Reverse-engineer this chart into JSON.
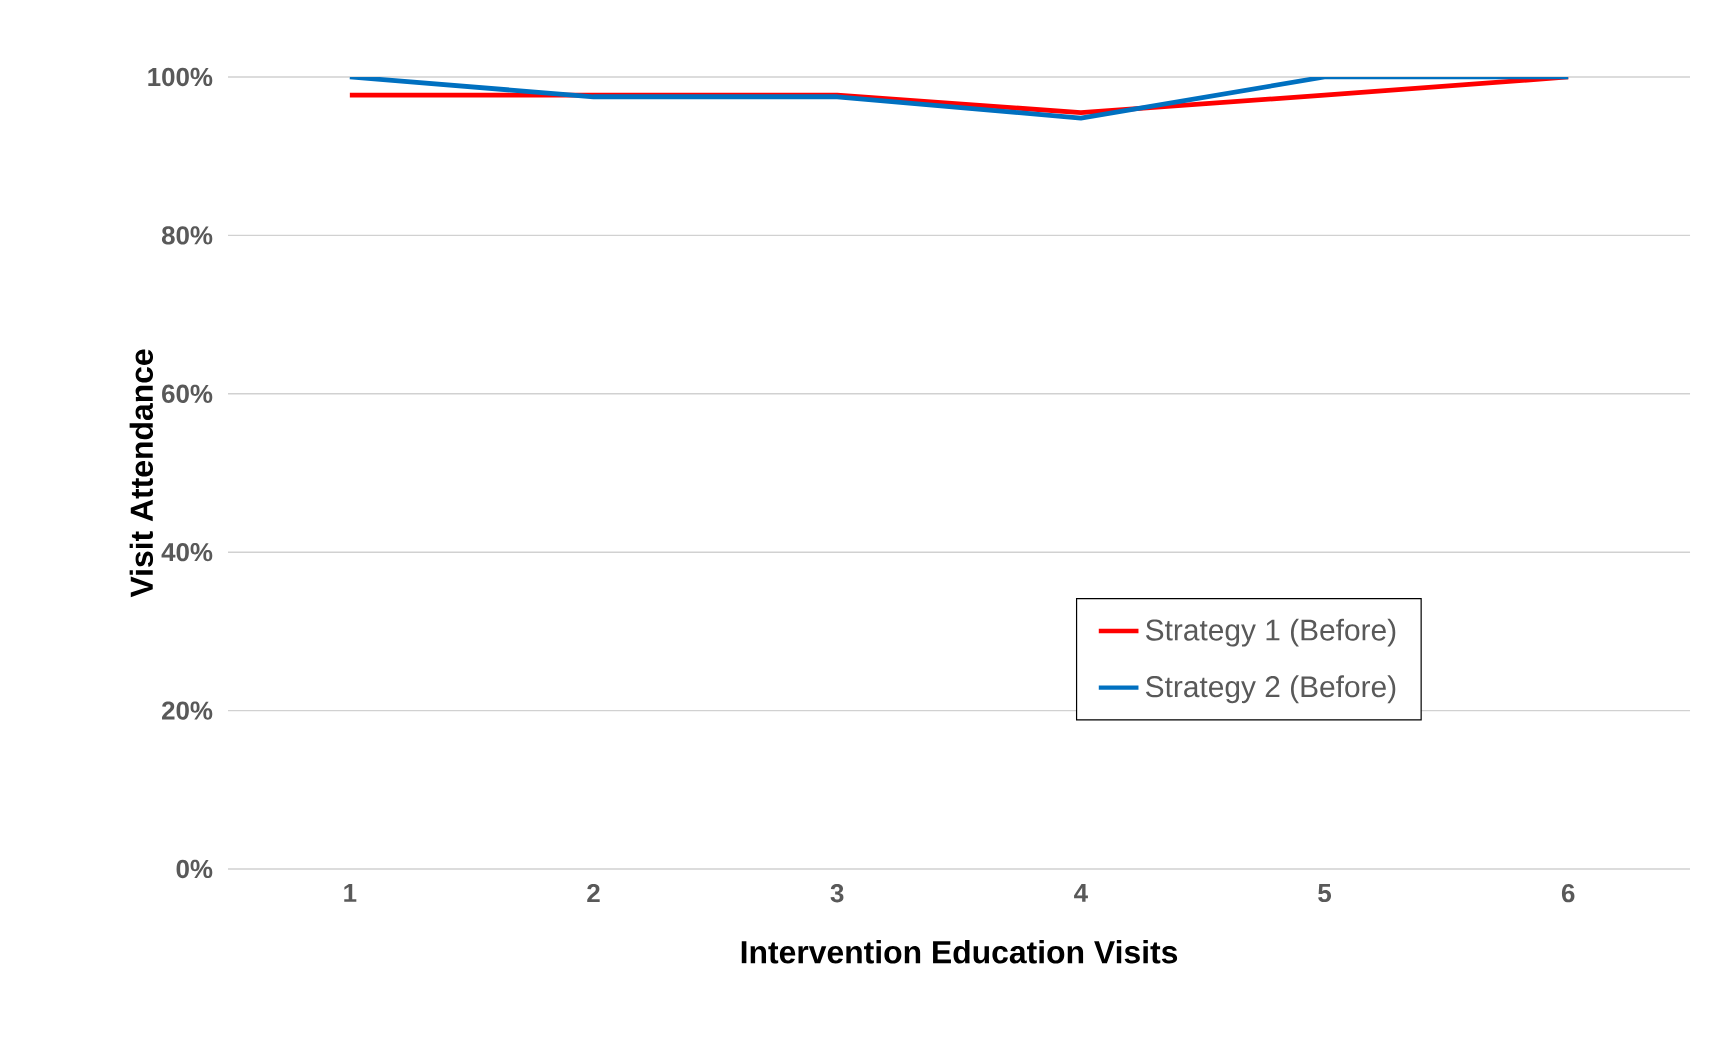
{
  "chart_data": {
    "type": "line",
    "xlabel": "Intervention Education Visits",
    "ylabel": "Visit Attendance",
    "categories": [
      "1",
      "2",
      "3",
      "4",
      "5",
      "6"
    ],
    "series": [
      {
        "name": "Strategy 1 (Before)",
        "color": "#ff0000",
        "values": [
          97.7,
          97.7,
          97.7,
          95.5,
          97.7,
          100
        ]
      },
      {
        "name": "Strategy 2 (Before)",
        "color": "#0070c0",
        "values": [
          100,
          97.5,
          97.5,
          94.8,
          100,
          100
        ]
      }
    ],
    "ylim": [
      0,
      100
    ],
    "yticks": [
      {
        "value": 0,
        "label": "0%"
      },
      {
        "value": 20,
        "label": "20%"
      },
      {
        "value": 40,
        "label": "40%"
      },
      {
        "value": 60,
        "label": "60%"
      },
      {
        "value": 80,
        "label": "80%"
      },
      {
        "value": 100,
        "label": "100%"
      }
    ],
    "grid": "y",
    "legend": "right",
    "line_style": "solid"
  }
}
